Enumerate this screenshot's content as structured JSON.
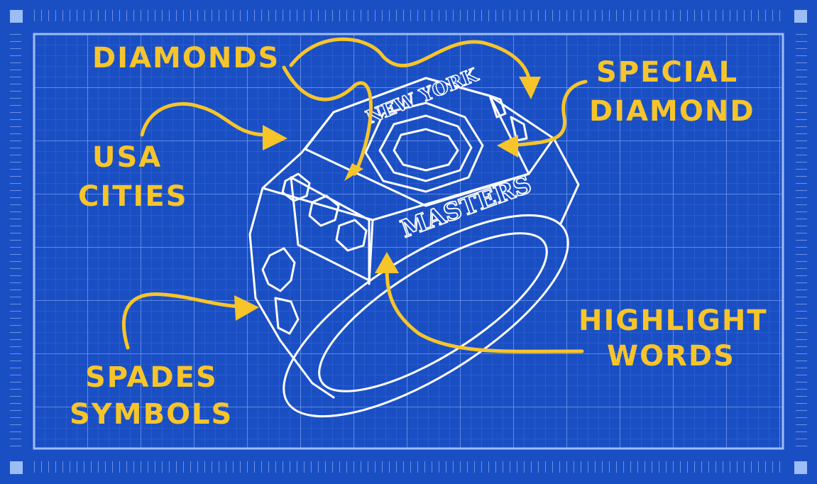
{
  "colors": {
    "background": "#1a4fc4",
    "grid": "#6f9bf0",
    "outline": "#ffffff",
    "annotation": "#f7c52a"
  },
  "ring": {
    "top_text": "NEW YORK",
    "side_text": "MASTERS"
  },
  "labels": {
    "diamonds": "DIAMONDS",
    "special_line1": "SPECIAL",
    "special_line2": "DIAMOND",
    "usa_line1": "USA",
    "usa_line2": "CITIES",
    "highlight_line1": "HIGHLIGHT",
    "highlight_line2": "WORDS",
    "spades_line1": "SPADES",
    "spades_line2": "SYMBOLS"
  }
}
